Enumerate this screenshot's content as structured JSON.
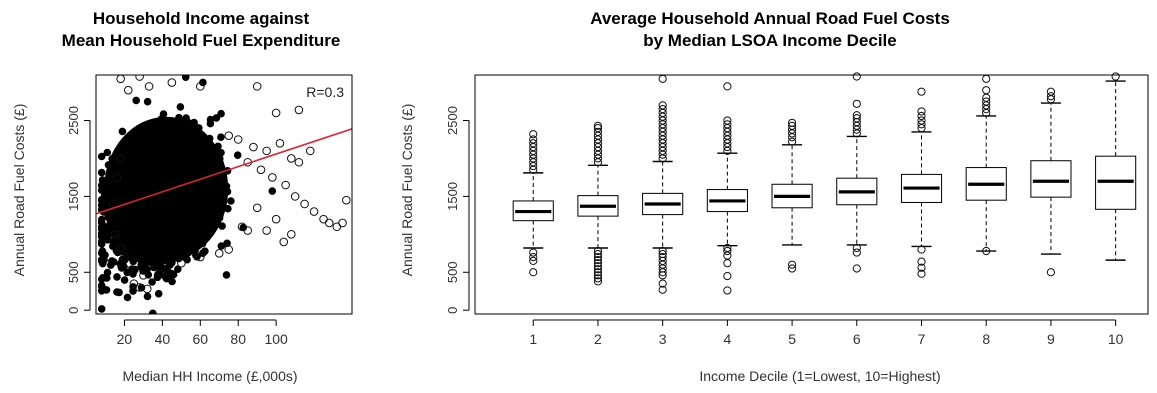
{
  "chart_data": [
    {
      "type": "scatter",
      "title_lines": [
        "Household Income against",
        "Mean Household Fuel Expenditure"
      ],
      "xlabel": "Median HH Income (£,000s)",
      "ylabel": "Annual Road Fuel Costs (£)",
      "xlim": [
        5,
        140
      ],
      "ylim": [
        -50,
        3100
      ],
      "x_ticks": [
        20,
        40,
        60,
        80,
        100
      ],
      "y_ticks": [
        0,
        500,
        1500,
        2500
      ],
      "annotation": "R=0.3",
      "fit_line": {
        "x": [
          5,
          140
        ],
        "y": [
          1270,
          2390
        ],
        "color": "#e0202a"
      },
      "outlier_points": [
        [
          18,
          3050
        ],
        [
          22,
          2900
        ],
        [
          28,
          3080
        ],
        [
          33,
          2950
        ],
        [
          45,
          3000
        ],
        [
          60,
          2950
        ],
        [
          90,
          2950
        ],
        [
          100,
          2600
        ],
        [
          112,
          2640
        ],
        [
          75,
          2300
        ],
        [
          80,
          2250
        ],
        [
          88,
          2150
        ],
        [
          95,
          2100
        ],
        [
          102,
          2200
        ],
        [
          108,
          2000
        ],
        [
          112,
          1950
        ],
        [
          118,
          2100
        ],
        [
          85,
          1950
        ],
        [
          92,
          1850
        ],
        [
          98,
          1750
        ],
        [
          105,
          1650
        ],
        [
          110,
          1500
        ],
        [
          115,
          1400
        ],
        [
          120,
          1300
        ],
        [
          125,
          1200
        ],
        [
          128,
          1150
        ],
        [
          132,
          1100
        ],
        [
          135,
          1150
        ],
        [
          137,
          1450
        ],
        [
          100,
          1200
        ],
        [
          95,
          1050
        ],
        [
          90,
          1350
        ],
        [
          85,
          1050
        ],
        [
          82,
          1100
        ],
        [
          75,
          800
        ],
        [
          70,
          750
        ],
        [
          60,
          700
        ],
        [
          50,
          620
        ],
        [
          40,
          480
        ],
        [
          30,
          460
        ],
        [
          25,
          350
        ],
        [
          28,
          300
        ],
        [
          32,
          280
        ],
        [
          22,
          520
        ],
        [
          20,
          700
        ],
        [
          18,
          820
        ],
        [
          15,
          1000
        ],
        [
          14,
          1400
        ],
        [
          16,
          1750
        ],
        [
          18,
          2000
        ],
        [
          108,
          1000
        ],
        [
          104,
          900
        ]
      ]
    },
    {
      "type": "box",
      "title_lines": [
        "Average Household Annual Road Fuel Costs",
        "by Median LSOA Income Decile"
      ],
      "xlabel": "Income Decile (1=Lowest, 10=Highest)",
      "ylabel": "Annual Road Fuel Costs (£)",
      "ylim": [
        -50,
        3100
      ],
      "y_ticks": [
        0,
        500,
        1500,
        2500
      ],
      "categories": [
        "1",
        "2",
        "3",
        "4",
        "5",
        "6",
        "7",
        "8",
        "9",
        "10"
      ],
      "boxes": [
        {
          "whisker_low": 820,
          "q1": 1180,
          "median": 1300,
          "q3": 1440,
          "whisker_high": 1810,
          "outliers_high": [
            1850,
            1900,
            1950,
            2000,
            2050,
            2100,
            2150,
            2200,
            2250,
            2320
          ],
          "outliers_low": [
            760,
            700,
            650,
            500
          ]
        },
        {
          "whisker_low": 820,
          "q1": 1240,
          "median": 1370,
          "q3": 1510,
          "whisker_high": 1910,
          "outliers_high": [
            1950,
            2000,
            2050,
            2100,
            2150,
            2200,
            2250,
            2300,
            2350,
            2400,
            2430
          ],
          "outliers_low": [
            780,
            740,
            700,
            660,
            620,
            580,
            540,
            500,
            460,
            420,
            380
          ]
        },
        {
          "whisker_low": 820,
          "q1": 1260,
          "median": 1400,
          "q3": 1540,
          "whisker_high": 1960,
          "outliers_high": [
            2000,
            2050,
            2100,
            2150,
            2200,
            2250,
            2300,
            2350,
            2400,
            2450,
            2500,
            2550,
            2600,
            2650,
            2700,
            3050
          ],
          "outliers_low": [
            780,
            740,
            700,
            650,
            600,
            550,
            500,
            460,
            350,
            270
          ]
        },
        {
          "whisker_low": 850,
          "q1": 1300,
          "median": 1440,
          "q3": 1590,
          "whisker_high": 2070,
          "outliers_high": [
            2100,
            2150,
            2200,
            2250,
            2300,
            2350,
            2400,
            2450,
            2500,
            2950
          ],
          "outliers_low": [
            820,
            780,
            720,
            620,
            450,
            260
          ]
        },
        {
          "whisker_low": 860,
          "q1": 1350,
          "median": 1500,
          "q3": 1660,
          "whisker_high": 2180,
          "outliers_high": [
            2220,
            2280,
            2330,
            2380,
            2430,
            2470
          ],
          "outliers_low": [
            600,
            550
          ]
        },
        {
          "whisker_low": 860,
          "q1": 1390,
          "median": 1560,
          "q3": 1740,
          "whisker_high": 2290,
          "outliers_high": [
            2330,
            2380,
            2430,
            2480,
            2530,
            2570,
            2720,
            3080
          ],
          "outliers_low": [
            820,
            760,
            550
          ]
        },
        {
          "whisker_low": 840,
          "q1": 1420,
          "median": 1610,
          "q3": 1790,
          "whisker_high": 2350,
          "outliers_high": [
            2400,
            2450,
            2500,
            2560,
            2620,
            2880
          ],
          "outliers_low": [
            800,
            640,
            560,
            480
          ]
        },
        {
          "whisker_low": 780,
          "q1": 1450,
          "median": 1660,
          "q3": 1880,
          "whisker_high": 2560,
          "outliers_high": [
            2600,
            2650,
            2700,
            2750,
            2800,
            2900,
            3050
          ],
          "outliers_low": [
            780
          ]
        },
        {
          "whisker_low": 740,
          "q1": 1490,
          "median": 1700,
          "q3": 1970,
          "whisker_high": 2730,
          "outliers_high": [
            2780,
            2820,
            2880
          ],
          "outliers_low": [
            500
          ]
        },
        {
          "whisker_low": 660,
          "q1": 1330,
          "median": 1700,
          "q3": 2030,
          "whisker_high": 3020,
          "outliers_high": [
            3080
          ],
          "outliers_low": []
        }
      ]
    }
  ]
}
